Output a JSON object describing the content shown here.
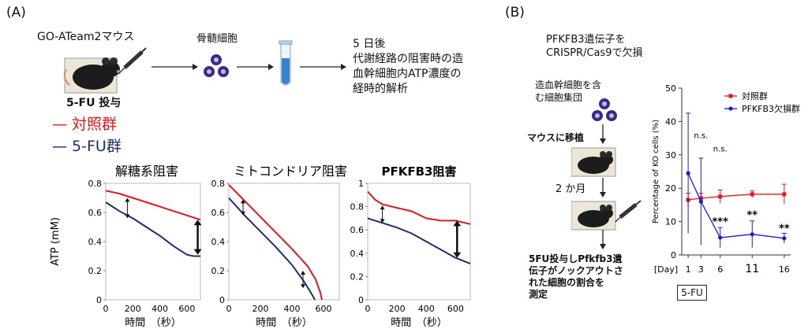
{
  "panelA": {
    "label": "(A)",
    "mouse_label": "GO-ATeam2マウス",
    "treatment_label": "5-FU 投与",
    "cells_label": "骨髄細胞",
    "analysis_lines": [
      "5 日後",
      "代謝経路の阻害時の造",
      "血幹細胞内ATP濃度の",
      "経時的解析"
    ],
    "legend": [
      {
        "name": "対照群",
        "color": "#e8141c"
      },
      {
        "name": "5-FU群",
        "color": "#1f2d6e"
      }
    ]
  },
  "panelB": {
    "label": "(B)",
    "crispr_lines": [
      "PFKFB3遺伝子を",
      "CRISPR/Cas9で欠損"
    ],
    "population_lines": [
      "造血幹細胞を含",
      "む細胞集団"
    ],
    "transplant_label": "マウスに移植",
    "period_label": "2 か月",
    "result_lines": [
      "5FU投与しPfkfb3遺",
      "伝子がノックアウトさ",
      "れた細胞の割合を",
      "測定"
    ],
    "fu_box_label": "5-FU"
  },
  "colors": {
    "control": "#e8141c",
    "fu": "#1f2d6e",
    "ko": "#1a1adb",
    "ctrlB": "#e8141c"
  },
  "chart_data": [
    {
      "type": "line",
      "title": "解糖系阻害",
      "xlabel": "時間　（秒）",
      "ylabel": "ATP (mM)",
      "xlim": [
        0,
        700
      ],
      "ylim": [
        0,
        0.8
      ],
      "xticks": [
        0,
        200,
        400,
        600
      ],
      "yticks": [
        0,
        0.2,
        0.4,
        0.6,
        0.8
      ],
      "series": [
        {
          "name": "対照群",
          "color": "#e8141c",
          "x": [
            0,
            100,
            200,
            300,
            400,
            500,
            600,
            700
          ],
          "y": [
            0.75,
            0.73,
            0.7,
            0.67,
            0.64,
            0.61,
            0.58,
            0.55
          ]
        },
        {
          "name": "5-FU群",
          "color": "#1f2d6e",
          "x": [
            0,
            100,
            200,
            300,
            400,
            500,
            600,
            650,
            700
          ],
          "y": [
            0.67,
            0.61,
            0.56,
            0.5,
            0.44,
            0.37,
            0.31,
            0.3,
            0.3
          ]
        }
      ]
    },
    {
      "type": "line",
      "title": "ミトコンドリア阻害",
      "xlabel": "時間　（秒）",
      "ylabel": "",
      "xlim": [
        0,
        700
      ],
      "ylim": [
        0,
        0.8
      ],
      "xticks": [
        0,
        200,
        400,
        600
      ],
      "yticks": [
        0,
        0.2,
        0.4,
        0.6,
        0.8
      ],
      "series": [
        {
          "name": "対照群",
          "color": "#e8141c",
          "x": [
            0,
            100,
            200,
            300,
            400,
            500,
            550,
            580,
            590
          ],
          "y": [
            0.79,
            0.68,
            0.57,
            0.46,
            0.35,
            0.23,
            0.14,
            0.05,
            0
          ]
        },
        {
          "name": "5-FU群",
          "color": "#1f2d6e",
          "x": [
            0,
            100,
            200,
            300,
            400,
            480,
            530,
            545
          ],
          "y": [
            0.7,
            0.58,
            0.47,
            0.36,
            0.24,
            0.12,
            0.03,
            0
          ]
        }
      ]
    },
    {
      "type": "line",
      "title": "PFKFB3阻害",
      "xlabel": "時間　（秒）",
      "ylabel": "",
      "xlim": [
        0,
        700
      ],
      "ylim": [
        0,
        1
      ],
      "xticks": [
        0,
        200,
        400,
        600
      ],
      "yticks": [
        0,
        0.2,
        0.4,
        0.6,
        0.8,
        1
      ],
      "series": [
        {
          "name": "対照群",
          "color": "#e8141c",
          "x": [
            0,
            50,
            100,
            200,
            300,
            400,
            500,
            600,
            700
          ],
          "y": [
            0.93,
            0.86,
            0.82,
            0.79,
            0.76,
            0.7,
            0.68,
            0.68,
            0.65
          ]
        },
        {
          "name": "5-FU群",
          "color": "#1f2d6e",
          "x": [
            0,
            100,
            200,
            300,
            400,
            500,
            600,
            700
          ],
          "y": [
            0.7,
            0.66,
            0.62,
            0.57,
            0.5,
            0.43,
            0.36,
            0.31
          ]
        }
      ]
    },
    {
      "type": "line",
      "title": "",
      "xlabel": "[Day]",
      "ylabel": "Percentage of KO cells (%)",
      "xlim": [
        0,
        17
      ],
      "ylim": [
        0,
        50
      ],
      "xticks": [
        1,
        3,
        6,
        11,
        16
      ],
      "yticks": [
        0,
        10,
        20,
        30,
        40,
        50
      ],
      "legend_position": "top-right",
      "series": [
        {
          "name": "対照群",
          "color": "#e8141c",
          "x": [
            1,
            3,
            6,
            11,
            16
          ],
          "y": [
            16.5,
            17,
            17.5,
            18.2,
            18.2
          ],
          "err": [
            2,
            1.5,
            2,
            1,
            3
          ]
        },
        {
          "name": "PFKFB3欠損群",
          "color": "#1a1adb",
          "x": [
            1,
            3,
            6,
            11,
            16
          ],
          "y": [
            24.5,
            16,
            5.2,
            6.2,
            5
          ],
          "err": [
            18,
            13,
            3,
            4,
            1.5
          ]
        }
      ],
      "annotations": [
        {
          "x": 3,
          "y": 35,
          "text": "n.s."
        },
        {
          "x": 6,
          "y": 31,
          "text": "n.s."
        },
        {
          "x": 6,
          "y": 9,
          "text": "***"
        },
        {
          "x": 11,
          "y": 11,
          "text": "**"
        },
        {
          "x": 16,
          "y": 7,
          "text": "**"
        }
      ]
    }
  ]
}
